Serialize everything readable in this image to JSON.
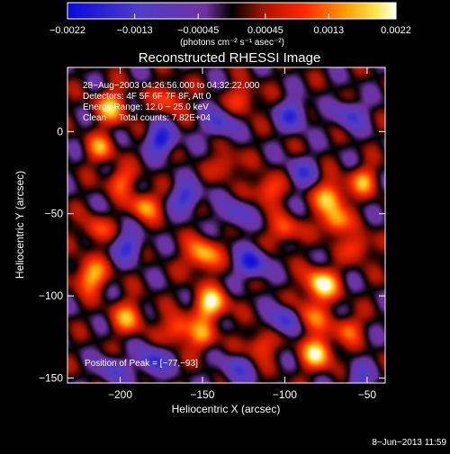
{
  "chart_data": {
    "type": "heatmap",
    "title": "Reconstructed RHESSI Image",
    "xlabel": "Heliocentric X (arcsec)",
    "ylabel": "Heliocentric Y (arcsec)",
    "xlim": [
      -232,
      -39
    ],
    "ylim": [
      -153,
      39
    ],
    "x_ticks": [
      {
        "value": -200,
        "label": "−200"
      },
      {
        "value": -150,
        "label": "−150"
      },
      {
        "value": -100,
        "label": "−100"
      },
      {
        "value": -50,
        "label": "−50"
      }
    ],
    "y_ticks": [
      {
        "value": 0,
        "label": "0"
      },
      {
        "value": -50,
        "label": "−50"
      },
      {
        "value": -100,
        "label": "−100"
      },
      {
        "value": -150,
        "label": "−150"
      }
    ],
    "colorbar": {
      "min": -0.0022,
      "max": 0.0022,
      "ticks": [
        {
          "value": -0.0022,
          "label": "−0.0022"
        },
        {
          "value": -0.0013,
          "label": "−0.0013"
        },
        {
          "value": -0.00045,
          "label": "−0.00045"
        },
        {
          "value": 0.00045,
          "label": "0.00045"
        },
        {
          "value": 0.0013,
          "label": "0.0013"
        },
        {
          "value": 0.0022,
          "label": "0.0022"
        }
      ],
      "unit_label": "(photons cm⁻² s⁻¹ asec⁻²)"
    },
    "annotations": {
      "time_range": "28−Aug−2003 04:26:56.000 to 04:32:22.000",
      "detectors": "Detectors: 4F 5F 6F 7F 8F, Att 0",
      "energy_range": "Energy Range: 12.0 − 25.0 keV",
      "method_counts": "Clean     Total counts: 7.82E+04",
      "peak": "Position of Peak = [−77,−93]"
    },
    "peak_position": [
      -77,
      -93
    ],
    "sources": [
      {
        "x": -78,
        "y": -93,
        "amp": 0.0022,
        "sigma": 7
      },
      {
        "x": -80,
        "y": -135,
        "amp": 0.0019,
        "sigma": 7
      },
      {
        "x": -85,
        "y": -113,
        "amp": 0.0012,
        "sigma": 7
      },
      {
        "x": -72,
        "y": -40,
        "amp": 0.0017,
        "sigma": 7
      },
      {
        "x": -70,
        "y": -55,
        "amp": 0.0016,
        "sigma": 6
      },
      {
        "x": -52,
        "y": -30,
        "amp": 0.0014,
        "sigma": 6
      },
      {
        "x": -55,
        "y": -70,
        "amp": 0.0012,
        "sigma": 6
      },
      {
        "x": -62,
        "y": -120,
        "amp": 0.0012,
        "sigma": 6
      },
      {
        "x": -150,
        "y": -75,
        "amp": 0.0018,
        "sigma": 7
      },
      {
        "x": -145,
        "y": -105,
        "amp": 0.0021,
        "sigma": 7
      },
      {
        "x": -150,
        "y": -125,
        "amp": 0.0013,
        "sigma": 6
      },
      {
        "x": -165,
        "y": -120,
        "amp": 0.0015,
        "sigma": 6
      },
      {
        "x": -205,
        "y": 15,
        "amp": 0.0016,
        "sigma": 7
      },
      {
        "x": -212,
        "y": -10,
        "amp": 0.0013,
        "sigma": 6
      },
      {
        "x": -200,
        "y": -30,
        "amp": 0.0012,
        "sigma": 6
      },
      {
        "x": -218,
        "y": -88,
        "amp": 0.0017,
        "sigma": 7
      },
      {
        "x": -195,
        "y": -113,
        "amp": 0.0014,
        "sigma": 7
      },
      {
        "x": -185,
        "y": -45,
        "amp": 0.0016,
        "sigma": 6
      },
      {
        "x": -170,
        "y": 20,
        "amp": 0.0012,
        "sigma": 6
      },
      {
        "x": -110,
        "y": -35,
        "amp": 0.0014,
        "sigma": 6
      },
      {
        "x": -100,
        "y": -60,
        "amp": 0.0013,
        "sigma": 6
      },
      {
        "x": -115,
        "y": -130,
        "amp": 0.0012,
        "sigma": 6
      },
      {
        "x": -125,
        "y": 20,
        "amp": 0.0011,
        "sigma": 6
      },
      {
        "x": -135,
        "y": -20,
        "amp": 0.001,
        "sigma": 6
      },
      {
        "x": -215,
        "y": -60,
        "amp": 0.0011,
        "sigma": 6
      },
      {
        "x": -175,
        "y": -5,
        "amp": -0.002,
        "sigma": 6
      },
      {
        "x": -120,
        "y": -80,
        "amp": -0.002,
        "sigma": 6
      },
      {
        "x": -180,
        "y": -140,
        "amp": -0.0017,
        "sigma": 6
      },
      {
        "x": -95,
        "y": 10,
        "amp": -0.0016,
        "sigma": 6
      },
      {
        "x": -140,
        "y": 5,
        "amp": -0.0014,
        "sigma": 6
      },
      {
        "x": -100,
        "y": -115,
        "amp": -0.0016,
        "sigma": 6
      },
      {
        "x": -160,
        "y": -40,
        "amp": -0.0016,
        "sigma": 6
      },
      {
        "x": -60,
        "y": 10,
        "amp": -0.0014,
        "sigma": 6
      },
      {
        "x": -195,
        "y": -70,
        "amp": -0.0015,
        "sigma": 6
      },
      {
        "x": -130,
        "y": -50,
        "amp": -0.0012,
        "sigma": 6
      },
      {
        "x": -205,
        "y": -145,
        "amp": -0.0012,
        "sigma": 6
      },
      {
        "x": -55,
        "y": -150,
        "amp": -0.001,
        "sigma": 6
      },
      {
        "x": -90,
        "y": -25,
        "amp": -0.0012,
        "sigma": 6
      },
      {
        "x": -130,
        "y": -145,
        "amp": -0.0012,
        "sigma": 6
      }
    ]
  },
  "footer": {
    "timestamp": "8−Jun−2013 11:59"
  }
}
